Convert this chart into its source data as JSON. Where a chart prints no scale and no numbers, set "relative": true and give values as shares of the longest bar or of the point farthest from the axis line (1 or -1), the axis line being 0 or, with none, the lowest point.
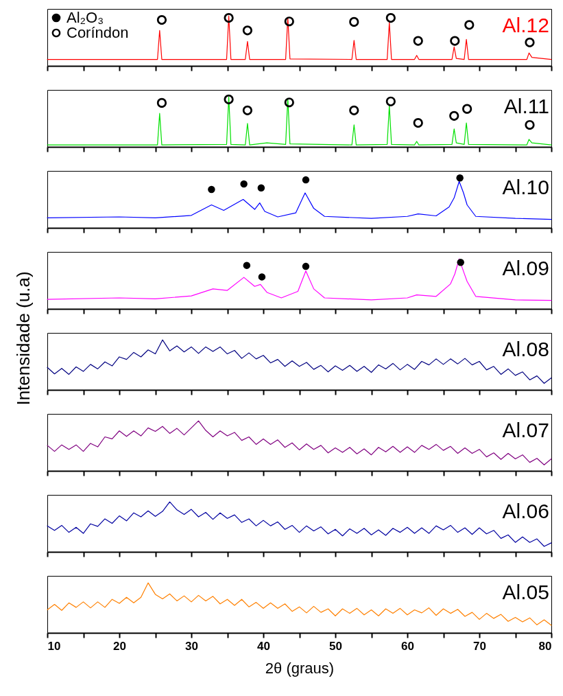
{
  "chart_data": [
    {
      "type": "line",
      "relative": true,
      "xlim": [
        10,
        80
      ],
      "xticks": [
        10,
        {
          "value": 15,
          "label": null
        },
        20,
        {
          "value": 25,
          "label": null
        },
        30,
        {
          "value": 35,
          "label": null
        },
        40,
        {
          "value": 45,
          "label": null
        },
        50,
        {
          "value": 55,
          "label": null
        },
        60,
        {
          "value": 65,
          "label": null
        },
        70,
        {
          "value": 75,
          "label": null
        },
        80
      ],
      "tick_labels": false,
      "legend": "top left",
      "series": [
        {
          "name": "Al.12",
          "color": "#ff0000",
          "x": [
            10,
            20,
            25.3,
            25.6,
            25.9,
            30,
            34.9,
            35.2,
            35.5,
            37.5,
            37.8,
            38.1,
            43.1,
            43.4,
            43.7,
            52.3,
            52.6,
            52.9,
            57.2,
            57.5,
            57.8,
            61,
            61.3,
            61.6,
            66.2,
            66.5,
            66.8,
            67.9,
            68.2,
            68.5,
            76.6,
            76.9,
            77.3,
            80
          ],
          "values": [
            0.13,
            0.13,
            0.13,
            0.71,
            0.13,
            0.13,
            0.13,
            1,
            0.13,
            0.13,
            0.49,
            0.13,
            0.13,
            0.97,
            0.14,
            0.13,
            0.51,
            0.13,
            0.13,
            0.87,
            0.13,
            0.13,
            0.21,
            0.13,
            0.13,
            0.38,
            0.15,
            0.13,
            0.53,
            0.13,
            0.13,
            0.26,
            0.17,
            0.13
          ]
        },
        {
          "type": "scatter",
          "name": "Al₂O₃",
          "color": "#000000",
          "marker": "circle"
        },
        {
          "type": "scatter",
          "name": "Coríndon",
          "color": "#000000",
          "x": [
            25.9,
            35.2,
            37.8,
            43.6,
            52.6,
            57.7,
            61.5,
            66.6,
            68.6,
            77
          ],
          "values": [
            0.92,
            0.96,
            0.71,
            0.89,
            0.88,
            0.96,
            0.5,
            0.5,
            0.82,
            0.47
          ]
        }
      ]
    },
    {
      "type": "line",
      "relative": true,
      "xlim": [
        10,
        80
      ],
      "xticks": [
        10,
        {
          "value": 15,
          "label": null
        },
        20,
        {
          "value": 25,
          "label": null
        },
        30,
        {
          "value": 35,
          "label": null
        },
        40,
        {
          "value": 45,
          "label": null
        },
        50,
        {
          "value": 55,
          "label": null
        },
        60,
        {
          "value": 65,
          "label": null
        },
        70,
        {
          "value": 75,
          "label": null
        },
        80
      ],
      "tick_labels": false,
      "series": [
        {
          "name": "Al.11",
          "color": "#00e000",
          "x": [
            10,
            20,
            25.3,
            25.6,
            25.9,
            34.9,
            35.2,
            35.5,
            37.5,
            37.8,
            38.1,
            40.5,
            43.1,
            43.4,
            43.7,
            52.3,
            52.6,
            52.9,
            57.2,
            57.5,
            57.8,
            61,
            61.3,
            61.6,
            66.2,
            66.5,
            66.8,
            67.9,
            68.2,
            68.5,
            76.6,
            76.9,
            77.3,
            80
          ],
          "values": [
            0.04,
            0.04,
            0.04,
            0.67,
            0.04,
            0.05,
            1,
            0.05,
            0.04,
            0.47,
            0.04,
            0.08,
            0.05,
            0.97,
            0.06,
            0.04,
            0.44,
            0.04,
            0.05,
            0.83,
            0.05,
            0.04,
            0.11,
            0.04,
            0.05,
            0.36,
            0.08,
            0.05,
            0.48,
            0.05,
            0.04,
            0.15,
            0.08,
            0.04
          ]
        },
        {
          "type": "scatter",
          "color": "#000000",
          "x": [
            25.9,
            35.2,
            37.8,
            43.6,
            52.6,
            57.7,
            61.5,
            66.5,
            68.3,
            77
          ],
          "values": [
            0.88,
            0.95,
            0.73,
            0.89,
            0.73,
            0.91,
            0.48,
            0.62,
            0.76,
            0.44
          ]
        }
      ]
    },
    {
      "type": "line",
      "relative": true,
      "xlim": [
        10,
        80
      ],
      "xticks": [
        10,
        {
          "value": 15,
          "label": null
        },
        20,
        {
          "value": 25,
          "label": null
        },
        30,
        {
          "value": 35,
          "label": null
        },
        40,
        {
          "value": 45,
          "label": null
        },
        50,
        {
          "value": 55,
          "label": null
        },
        60,
        {
          "value": 65,
          "label": null
        },
        70,
        {
          "value": 75,
          "label": null
        },
        80
      ],
      "tick_labels": false,
      "series": [
        {
          "name": "Al.10",
          "color": "#0000ff",
          "x": [
            10,
            20,
            25,
            30,
            32.8,
            34.5,
            37.2,
            38.8,
            39.5,
            40.2,
            42,
            44.5,
            45.8,
            47,
            48.5,
            55,
            60,
            61.5,
            64,
            65.8,
            66.5,
            67.2,
            67.8,
            68.3,
            69.5,
            75,
            80
          ],
          "values": [
            0.2,
            0.22,
            0.2,
            0.25,
            0.46,
            0.35,
            0.57,
            0.37,
            0.5,
            0.33,
            0.22,
            0.3,
            0.7,
            0.39,
            0.23,
            0.19,
            0.23,
            0.28,
            0.24,
            0.42,
            0.6,
            0.93,
            0.7,
            0.46,
            0.23,
            0.19,
            0.17
          ]
        },
        {
          "type": "scatter",
          "color": "#000000",
          "marker": "circle",
          "x": [
            32.8,
            37.3,
            39.7,
            45.9,
            67.3
          ],
          "values": [
            0.77,
            0.88,
            0.8,
            0.96,
            1
          ]
        }
      ]
    },
    {
      "type": "line",
      "relative": true,
      "xlim": [
        10,
        80
      ],
      "xticks": [
        10,
        {
          "value": 15,
          "label": null
        },
        20,
        {
          "value": 25,
          "label": null
        },
        30,
        {
          "value": 35,
          "label": null
        },
        40,
        {
          "value": 45,
          "label": null
        },
        50,
        {
          "value": 55,
          "label": null
        },
        60,
        {
          "value": 65,
          "label": null
        },
        70,
        {
          "value": 75,
          "label": null
        },
        80
      ],
      "tick_labels": false,
      "ylabel": "Intensidade (u.a)",
      "series": [
        {
          "name": "Al.09",
          "color": "#ff00ff",
          "x": [
            10,
            20,
            25,
            30,
            33,
            35,
            37.3,
            38.8,
            39.6,
            40.5,
            42.5,
            44.8,
            45.9,
            47,
            48.5,
            55,
            60,
            61.3,
            64,
            66,
            66.6,
            67.2,
            67.8,
            68.3,
            69.5,
            75,
            80
          ],
          "values": [
            0.19,
            0.22,
            0.2,
            0.26,
            0.4,
            0.37,
            0.63,
            0.45,
            0.49,
            0.33,
            0.22,
            0.35,
            0.76,
            0.4,
            0.22,
            0.18,
            0.22,
            0.28,
            0.25,
            0.5,
            0.7,
            1,
            0.75,
            0.55,
            0.25,
            0.18,
            0.17
          ]
        },
        {
          "type": "scatter",
          "color": "#000000",
          "marker": "circle",
          "x": [
            37.7,
            39.8,
            45.9,
            67.4
          ],
          "values": [
            0.87,
            0.64,
            0.85,
            0.93
          ]
        }
      ]
    },
    {
      "type": "line",
      "relative": true,
      "xlim": [
        10,
        80
      ],
      "xticks": [
        10,
        {
          "value": 15,
          "label": null
        },
        20,
        {
          "value": 25,
          "label": null
        },
        30,
        {
          "value": 35,
          "label": null
        },
        40,
        {
          "value": 45,
          "label": null
        },
        50,
        {
          "value": 55,
          "label": null
        },
        60,
        {
          "value": 65,
          "label": null
        },
        70,
        {
          "value": 75,
          "label": null
        },
        80
      ],
      "tick_labels": false,
      "series": [
        {
          "name": "Al.08",
          "color": "#000080",
          "x": [
            10,
            11,
            12,
            13,
            14,
            15,
            16,
            17,
            18,
            19,
            20,
            21,
            22,
            23,
            24,
            25,
            26,
            27,
            28,
            29,
            30,
            31,
            32,
            33,
            34,
            35,
            36,
            37,
            38,
            39,
            40,
            41,
            42,
            43,
            44,
            45,
            46,
            47,
            48,
            49,
            50,
            51,
            52,
            53,
            54,
            55,
            56,
            57,
            58,
            59,
            60,
            61,
            62,
            63,
            64,
            65,
            66,
            67,
            68,
            69,
            70,
            71,
            72,
            73,
            74,
            75,
            76,
            77,
            78,
            79,
            80
          ],
          "values": [
            0.45,
            0.32,
            0.43,
            0.31,
            0.46,
            0.37,
            0.51,
            0.42,
            0.56,
            0.48,
            0.66,
            0.61,
            0.75,
            0.66,
            0.8,
            0.72,
            1,
            0.78,
            0.88,
            0.76,
            0.86,
            0.73,
            0.86,
            0.77,
            0.86,
            0.72,
            0.79,
            0.63,
            0.74,
            0.62,
            0.69,
            0.54,
            0.61,
            0.47,
            0.58,
            0.47,
            0.55,
            0.41,
            0.49,
            0.36,
            0.48,
            0.39,
            0.49,
            0.37,
            0.47,
            0.35,
            0.5,
            0.42,
            0.53,
            0.4,
            0.51,
            0.41,
            0.57,
            0.5,
            0.62,
            0.51,
            0.62,
            0.52,
            0.63,
            0.5,
            0.57,
            0.4,
            0.47,
            0.31,
            0.42,
            0.29,
            0.36,
            0.2,
            0.28,
            0.13,
            0.24
          ]
        }
      ]
    },
    {
      "type": "line",
      "relative": true,
      "xlim": [
        10,
        80
      ],
      "xticks": [
        10,
        {
          "value": 15,
          "label": null
        },
        20,
        {
          "value": 25,
          "label": null
        },
        30,
        {
          "value": 35,
          "label": null
        },
        40,
        {
          "value": 45,
          "label": null
        },
        50,
        {
          "value": 55,
          "label": null
        },
        60,
        {
          "value": 65,
          "label": null
        },
        70,
        {
          "value": 75,
          "label": null
        },
        80
      ],
      "tick_labels": false,
      "series": [
        {
          "name": "Al.07",
          "color": "#800080",
          "x": [
            10,
            11,
            12,
            13,
            14,
            15,
            16,
            17,
            18,
            19,
            20,
            21,
            22,
            23,
            24,
            25,
            26,
            27,
            28,
            29,
            30,
            31,
            32,
            33,
            34,
            35,
            36,
            37,
            38,
            39,
            40,
            41,
            42,
            43,
            44,
            45,
            46,
            47,
            48,
            49,
            50,
            51,
            52,
            53,
            54,
            55,
            56,
            57,
            58,
            59,
            60,
            61,
            62,
            63,
            64,
            65,
            66,
            67,
            68,
            69,
            70,
            71,
            72,
            73,
            74,
            75,
            76,
            77,
            78,
            79,
            80
          ],
          "values": [
            0.51,
            0.39,
            0.52,
            0.43,
            0.52,
            0.39,
            0.55,
            0.48,
            0.68,
            0.64,
            0.8,
            0.69,
            0.8,
            0.7,
            0.86,
            0.79,
            0.89,
            0.75,
            0.85,
            0.72,
            0.86,
            1,
            0.81,
            0.68,
            0.8,
            0.7,
            0.77,
            0.61,
            0.68,
            0.53,
            0.64,
            0.53,
            0.62,
            0.47,
            0.56,
            0.42,
            0.54,
            0.43,
            0.51,
            0.36,
            0.46,
            0.37,
            0.47,
            0.34,
            0.44,
            0.32,
            0.47,
            0.38,
            0.49,
            0.37,
            0.48,
            0.37,
            0.51,
            0.43,
            0.53,
            0.41,
            0.49,
            0.35,
            0.46,
            0.35,
            0.43,
            0.28,
            0.36,
            0.23,
            0.35,
            0.24,
            0.32,
            0.17,
            0.25,
            0.12,
            0.24
          ]
        }
      ]
    },
    {
      "type": "line",
      "relative": true,
      "xlim": [
        10,
        80
      ],
      "xticks": [
        10,
        {
          "value": 15,
          "label": null
        },
        20,
        {
          "value": 25,
          "label": null
        },
        30,
        {
          "value": 35,
          "label": null
        },
        40,
        {
          "value": 45,
          "label": null
        },
        50,
        {
          "value": 55,
          "label": null
        },
        60,
        {
          "value": 65,
          "label": null
        },
        70,
        {
          "value": 75,
          "label": null
        },
        80
      ],
      "tick_labels": false,
      "series": [
        {
          "name": "Al.06",
          "color": "#0000a0",
          "x": [
            10,
            11,
            12,
            13,
            14,
            15,
            16,
            17,
            18,
            19,
            20,
            21,
            22,
            23,
            24,
            25,
            26,
            27,
            28,
            29,
            30,
            31,
            32,
            33,
            34,
            35,
            36,
            37,
            38,
            39,
            40,
            41,
            42,
            43,
            44,
            45,
            46,
            47,
            48,
            49,
            50,
            51,
            52,
            53,
            54,
            55,
            56,
            57,
            58,
            59,
            60,
            61,
            62,
            63,
            64,
            65,
            66,
            67,
            68,
            69,
            70,
            71,
            72,
            73,
            74,
            75,
            76,
            77,
            78,
            79,
            80
          ],
          "values": [
            0.52,
            0.43,
            0.53,
            0.39,
            0.49,
            0.37,
            0.56,
            0.51,
            0.66,
            0.57,
            0.72,
            0.62,
            0.78,
            0.7,
            0.82,
            0.71,
            0.81,
            1,
            0.84,
            0.75,
            0.85,
            0.7,
            0.79,
            0.65,
            0.78,
            0.67,
            0.74,
            0.59,
            0.66,
            0.52,
            0.63,
            0.52,
            0.6,
            0.45,
            0.53,
            0.39,
            0.52,
            0.42,
            0.5,
            0.36,
            0.45,
            0.32,
            0.46,
            0.37,
            0.47,
            0.34,
            0.44,
            0.33,
            0.47,
            0.39,
            0.49,
            0.37,
            0.48,
            0.37,
            0.52,
            0.44,
            0.53,
            0.39,
            0.48,
            0.35,
            0.48,
            0.36,
            0.43,
            0.27,
            0.34,
            0.19,
            0.3,
            0.19,
            0.26,
            0.11,
            0.18
          ]
        }
      ]
    },
    {
      "type": "line",
      "relative": true,
      "xlim": [
        10,
        80
      ],
      "xticks": [
        10,
        {
          "value": 15,
          "label": null
        },
        20,
        {
          "value": 25,
          "label": null
        },
        30,
        {
          "value": 35,
          "label": null
        },
        40,
        {
          "value": 45,
          "label": null
        },
        50,
        {
          "value": 55,
          "label": null
        },
        60,
        {
          "value": 65,
          "label": null
        },
        70,
        {
          "value": 75,
          "label": null
        },
        80
      ],
      "tick_labels": "x",
      "xlabel": "2θ (graus)",
      "series": [
        {
          "name": "Al.05",
          "color": "#ff8000",
          "x": [
            10,
            11,
            12,
            13,
            14,
            15,
            16,
            17,
            18,
            19,
            20,
            21,
            22,
            23,
            24,
            25,
            26,
            27,
            28,
            29,
            30,
            31,
            32,
            33,
            34,
            35,
            36,
            37,
            38,
            39,
            40,
            41,
            42,
            43,
            44,
            45,
            46,
            47,
            48,
            49,
            50,
            51,
            52,
            53,
            54,
            55,
            56,
            57,
            58,
            59,
            60,
            61,
            62,
            63,
            64,
            65,
            66,
            67,
            68,
            69,
            70,
            71,
            72,
            73,
            74,
            75,
            76,
            77,
            78,
            79,
            80
          ],
          "values": [
            0.46,
            0.57,
            0.45,
            0.6,
            0.51,
            0.62,
            0.5,
            0.62,
            0.51,
            0.67,
            0.59,
            0.71,
            0.6,
            0.71,
            1,
            0.77,
            0.68,
            0.78,
            0.64,
            0.74,
            0.62,
            0.75,
            0.64,
            0.73,
            0.58,
            0.67,
            0.55,
            0.67,
            0.52,
            0.61,
            0.49,
            0.6,
            0.49,
            0.58,
            0.43,
            0.52,
            0.4,
            0.53,
            0.41,
            0.48,
            0.34,
            0.48,
            0.39,
            0.49,
            0.36,
            0.46,
            0.34,
            0.48,
            0.39,
            0.49,
            0.36,
            0.46,
            0.4,
            0.5,
            0.35,
            0.48,
            0.39,
            0.47,
            0.33,
            0.41,
            0.27,
            0.39,
            0.29,
            0.37,
            0.23,
            0.31,
            0.22,
            0.3,
            0.16,
            0.26,
            0.15
          ]
        }
      ]
    }
  ]
}
